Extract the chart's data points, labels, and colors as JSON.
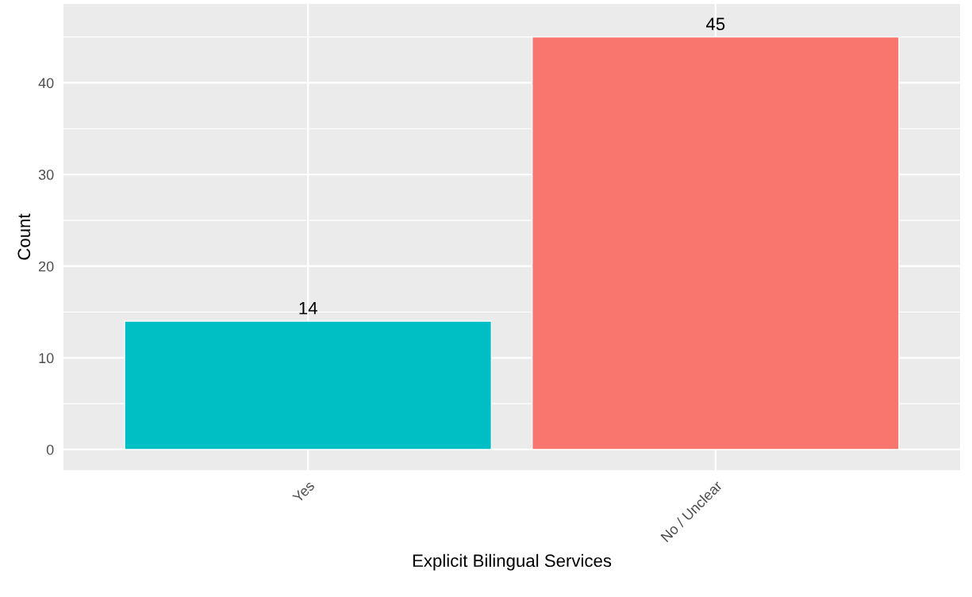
{
  "chart_data": {
    "type": "bar",
    "xlabel": "Explicit Bilingual Services",
    "ylabel": "Count",
    "categories": [
      "Yes",
      "No / Unclear"
    ],
    "values": [
      14,
      45
    ],
    "colors": [
      "#00bfc4",
      "#f8766d"
    ],
    "ylim": [
      -2.25,
      48.6
    ],
    "yticks": [
      0,
      10,
      20,
      30,
      40
    ],
    "grid": true,
    "data_labels": true
  }
}
